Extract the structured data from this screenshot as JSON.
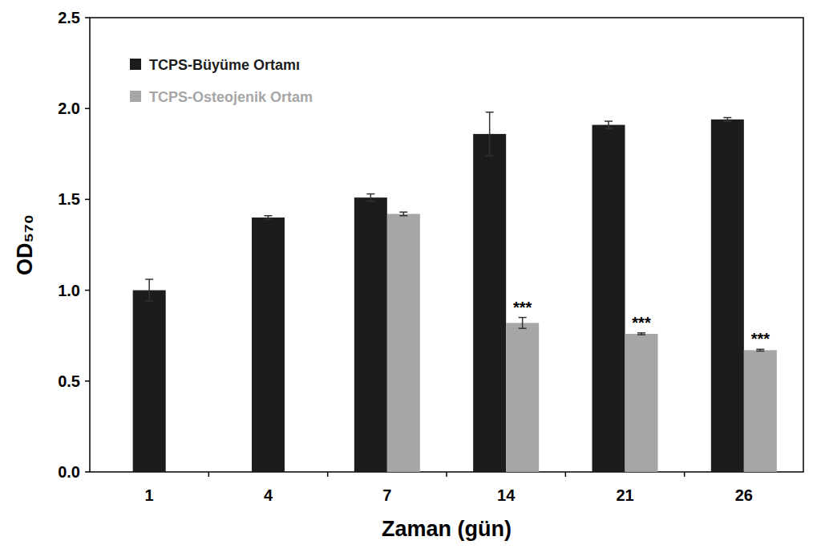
{
  "chart_data": {
    "type": "bar",
    "x_label": "Zaman (gün)",
    "y_label": "OD₅₇₀",
    "categories": [
      "1",
      "4",
      "7",
      "14",
      "21",
      "26"
    ],
    "series": [
      {
        "name": "TCPS-Büyüme Ortamı",
        "color": "#1c1c1c",
        "values": [
          1.0,
          1.4,
          1.51,
          1.86,
          1.91,
          1.94
        ],
        "errors": [
          0.06,
          0.01,
          0.02,
          0.12,
          0.02,
          0.01
        ],
        "significance": [
          null,
          null,
          null,
          null,
          null,
          null
        ]
      },
      {
        "name": "TCPS-Osteojenik Ortam",
        "color": "#a6a6a6",
        "values": [
          null,
          null,
          1.42,
          0.82,
          0.76,
          0.67
        ],
        "errors": [
          null,
          null,
          0.01,
          0.03,
          0.005,
          0.005
        ],
        "significance": [
          null,
          null,
          null,
          "***",
          "***",
          "***"
        ]
      }
    ],
    "ylim": [
      0,
      2.5
    ],
    "yticks": [
      {
        "value": 0,
        "label": "0.0"
      },
      0.5,
      {
        "value": 1,
        "label": "1.0"
      },
      1.5,
      {
        "value": 2,
        "label": "2.0"
      },
      2.5
    ],
    "legend": "top-left",
    "grid": false
  }
}
